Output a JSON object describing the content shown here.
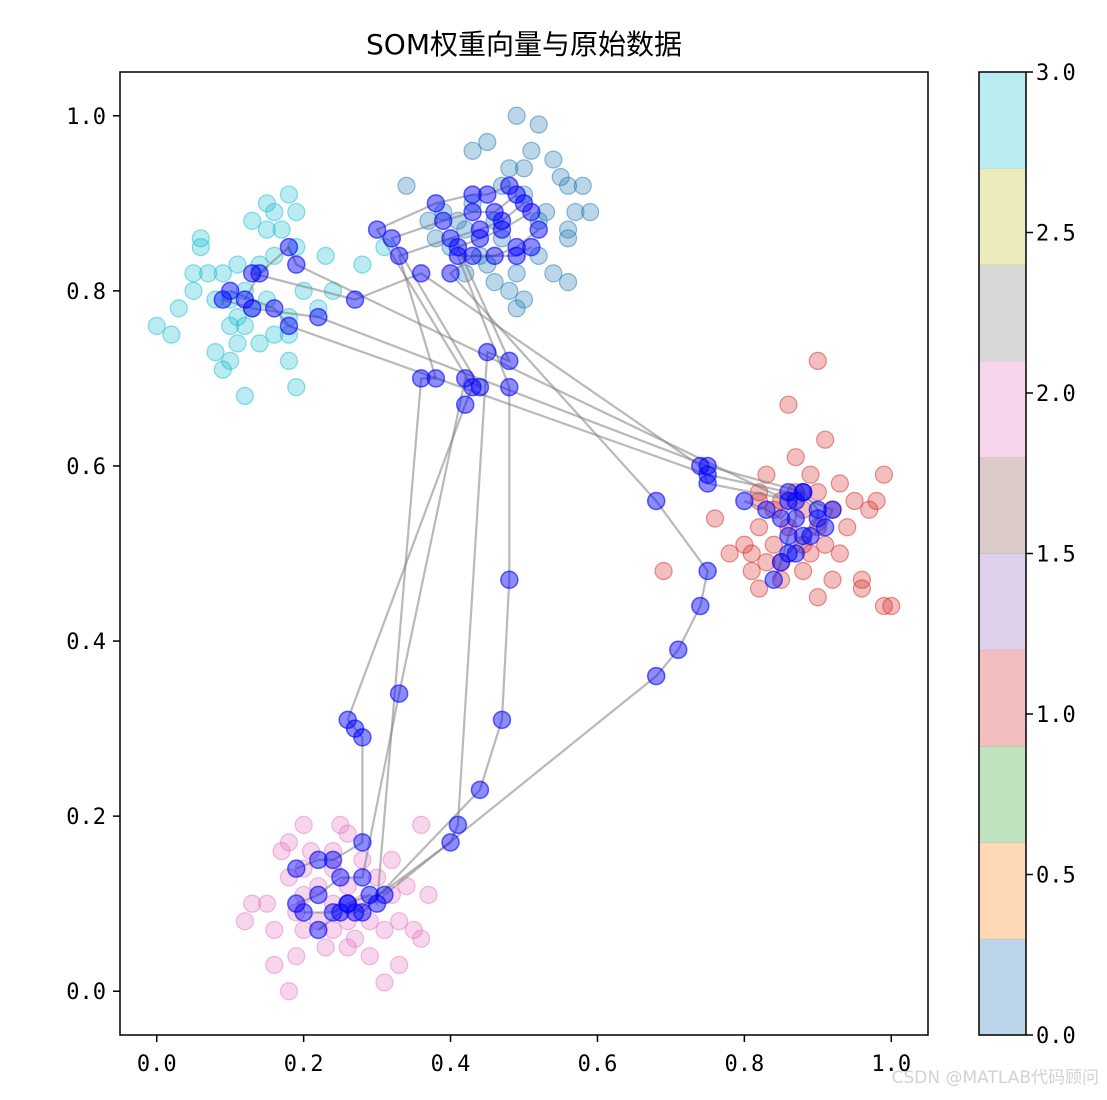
{
  "chart_data": {
    "type": "scatter",
    "title": "SOM权重向量与原始数据",
    "xlim": [
      -0.05,
      1.05
    ],
    "ylim": [
      -0.05,
      1.05
    ],
    "xticks": [
      0.0,
      0.2,
      0.4,
      0.6,
      0.8,
      1.0
    ],
    "yticks": [
      0.0,
      0.2,
      0.4,
      0.6,
      0.8,
      1.0
    ],
    "xtick_labels": [
      "0.0",
      "0.2",
      "0.4",
      "0.6",
      "0.8",
      "1.0"
    ],
    "ytick_labels": [
      "0.0",
      "0.2",
      "0.4",
      "0.6",
      "0.8",
      "1.0"
    ],
    "grid": false,
    "colorbar": {
      "range": [
        0.0,
        3.0
      ],
      "tick_labels": [
        "0.0",
        "0.5",
        "1.0",
        "1.5",
        "2.0",
        "2.5",
        "3.0"
      ],
      "bands": [
        "#1f77b4",
        "#ff7f0e",
        "#2ca02c",
        "#d62728",
        "#9467bd",
        "#8c564b",
        "#e377c2",
        "#7f7f7f",
        "#bcbd22",
        "#17becf"
      ]
    },
    "data_clusters": [
      {
        "label": 0,
        "color": "#1f77b4",
        "points": [
          [
            0.49,
            1.0
          ],
          [
            0.52,
            0.99
          ],
          [
            0.43,
            0.96
          ],
          [
            0.45,
            0.97
          ],
          [
            0.48,
            0.94
          ],
          [
            0.51,
            0.96
          ],
          [
            0.54,
            0.95
          ],
          [
            0.56,
            0.92
          ],
          [
            0.55,
            0.93
          ],
          [
            0.58,
            0.92
          ],
          [
            0.57,
            0.89
          ],
          [
            0.59,
            0.89
          ],
          [
            0.53,
            0.89
          ],
          [
            0.5,
            0.91
          ],
          [
            0.47,
            0.92
          ],
          [
            0.46,
            0.88
          ],
          [
            0.42,
            0.87
          ],
          [
            0.39,
            0.89
          ],
          [
            0.34,
            0.92
          ],
          [
            0.4,
            0.85
          ],
          [
            0.44,
            0.84
          ],
          [
            0.47,
            0.86
          ],
          [
            0.49,
            0.82
          ],
          [
            0.52,
            0.84
          ],
          [
            0.54,
            0.82
          ],
          [
            0.56,
            0.86
          ],
          [
            0.56,
            0.87
          ],
          [
            0.56,
            0.81
          ],
          [
            0.42,
            0.82
          ],
          [
            0.46,
            0.81
          ],
          [
            0.48,
            0.8
          ],
          [
            0.49,
            0.78
          ],
          [
            0.5,
            0.79
          ],
          [
            0.45,
            0.83
          ],
          [
            0.38,
            0.86
          ],
          [
            0.37,
            0.88
          ],
          [
            0.52,
            0.88
          ],
          [
            0.5,
            0.94
          ],
          [
            0.43,
            0.9
          ],
          [
            0.41,
            0.88
          ]
        ]
      },
      {
        "label": 3,
        "color": "#17becf",
        "points": [
          [
            0.18,
            0.91
          ],
          [
            0.15,
            0.9
          ],
          [
            0.16,
            0.89
          ],
          [
            0.19,
            0.89
          ],
          [
            0.13,
            0.88
          ],
          [
            0.15,
            0.87
          ],
          [
            0.17,
            0.87
          ],
          [
            0.06,
            0.86
          ],
          [
            0.06,
            0.85
          ],
          [
            0.19,
            0.85
          ],
          [
            0.11,
            0.83
          ],
          [
            0.14,
            0.83
          ],
          [
            0.16,
            0.84
          ],
          [
            0.23,
            0.84
          ],
          [
            0.05,
            0.82
          ],
          [
            0.07,
            0.82
          ],
          [
            0.09,
            0.82
          ],
          [
            0.12,
            0.8
          ],
          [
            0.05,
            0.8
          ],
          [
            0.1,
            0.79
          ],
          [
            0.2,
            0.8
          ],
          [
            0.24,
            0.8
          ],
          [
            0.08,
            0.79
          ],
          [
            0.03,
            0.78
          ],
          [
            0.13,
            0.78
          ],
          [
            0.18,
            0.77
          ],
          [
            0.22,
            0.78
          ],
          [
            0.0,
            0.76
          ],
          [
            0.1,
            0.76
          ],
          [
            0.12,
            0.76
          ],
          [
            0.16,
            0.75
          ],
          [
            0.02,
            0.75
          ],
          [
            0.11,
            0.74
          ],
          [
            0.14,
            0.74
          ],
          [
            0.18,
            0.75
          ],
          [
            0.08,
            0.73
          ],
          [
            0.1,
            0.72
          ],
          [
            0.18,
            0.72
          ],
          [
            0.09,
            0.71
          ],
          [
            0.19,
            0.69
          ],
          [
            0.12,
            0.68
          ],
          [
            0.28,
            0.83
          ],
          [
            0.31,
            0.85
          ],
          [
            0.11,
            0.77
          ],
          [
            0.15,
            0.79
          ]
        ]
      },
      {
        "label": 1,
        "color": "#d62728",
        "points": [
          [
            0.9,
            0.72
          ],
          [
            0.86,
            0.67
          ],
          [
            0.91,
            0.63
          ],
          [
            0.87,
            0.61
          ],
          [
            0.83,
            0.59
          ],
          [
            0.89,
            0.59
          ],
          [
            0.93,
            0.58
          ],
          [
            0.99,
            0.59
          ],
          [
            0.82,
            0.57
          ],
          [
            0.87,
            0.57
          ],
          [
            0.85,
            0.56
          ],
          [
            0.9,
            0.57
          ],
          [
            0.95,
            0.56
          ],
          [
            0.98,
            0.56
          ],
          [
            0.84,
            0.55
          ],
          [
            0.88,
            0.55
          ],
          [
            0.92,
            0.55
          ],
          [
            0.97,
            0.55
          ],
          [
            0.76,
            0.54
          ],
          [
            0.82,
            0.53
          ],
          [
            0.86,
            0.53
          ],
          [
            0.9,
            0.53
          ],
          [
            0.94,
            0.53
          ],
          [
            0.8,
            0.51
          ],
          [
            0.84,
            0.51
          ],
          [
            0.88,
            0.51
          ],
          [
            0.91,
            0.51
          ],
          [
            0.81,
            0.5
          ],
          [
            0.85,
            0.49
          ],
          [
            0.89,
            0.5
          ],
          [
            0.93,
            0.5
          ],
          [
            0.69,
            0.48
          ],
          [
            0.81,
            0.48
          ],
          [
            0.83,
            0.49
          ],
          [
            0.88,
            0.48
          ],
          [
            0.92,
            0.47
          ],
          [
            0.96,
            0.47
          ],
          [
            0.82,
            0.46
          ],
          [
            0.9,
            0.45
          ],
          [
            0.96,
            0.46
          ],
          [
            0.99,
            0.44
          ],
          [
            1.0,
            0.44
          ],
          [
            0.85,
            0.47
          ],
          [
            0.78,
            0.5
          ],
          [
            0.82,
            0.56
          ]
        ]
      },
      {
        "label": 2,
        "color": "#e377c2",
        "points": [
          [
            0.2,
            0.19
          ],
          [
            0.25,
            0.19
          ],
          [
            0.18,
            0.17
          ],
          [
            0.26,
            0.18
          ],
          [
            0.17,
            0.16
          ],
          [
            0.21,
            0.16
          ],
          [
            0.24,
            0.16
          ],
          [
            0.36,
            0.19
          ],
          [
            0.2,
            0.14
          ],
          [
            0.24,
            0.14
          ],
          [
            0.28,
            0.15
          ],
          [
            0.32,
            0.15
          ],
          [
            0.18,
            0.13
          ],
          [
            0.22,
            0.12
          ],
          [
            0.26,
            0.12
          ],
          [
            0.3,
            0.13
          ],
          [
            0.34,
            0.12
          ],
          [
            0.2,
            0.11
          ],
          [
            0.24,
            0.1
          ],
          [
            0.28,
            0.1
          ],
          [
            0.32,
            0.11
          ],
          [
            0.37,
            0.11
          ],
          [
            0.19,
            0.09
          ],
          [
            0.22,
            0.08
          ],
          [
            0.26,
            0.08
          ],
          [
            0.29,
            0.08
          ],
          [
            0.33,
            0.08
          ],
          [
            0.13,
            0.1
          ],
          [
            0.15,
            0.1
          ],
          [
            0.12,
            0.08
          ],
          [
            0.16,
            0.07
          ],
          [
            0.2,
            0.07
          ],
          [
            0.24,
            0.07
          ],
          [
            0.27,
            0.06
          ],
          [
            0.31,
            0.07
          ],
          [
            0.35,
            0.07
          ],
          [
            0.36,
            0.06
          ],
          [
            0.23,
            0.05
          ],
          [
            0.26,
            0.05
          ],
          [
            0.29,
            0.04
          ],
          [
            0.19,
            0.04
          ],
          [
            0.16,
            0.03
          ],
          [
            0.33,
            0.03
          ],
          [
            0.31,
            0.01
          ],
          [
            0.18,
            0.0
          ]
        ]
      }
    ],
    "som_grid": [
      [
        [
          0.19,
          0.14
        ],
        [
          0.22,
          0.15
        ],
        [
          0.24,
          0.15
        ],
        [
          0.28,
          0.17
        ],
        [
          0.28,
          0.29
        ],
        [
          0.27,
          0.3
        ],
        [
          0.26,
          0.31
        ],
        [
          0.42,
          0.67
        ],
        [
          0.43,
          0.69
        ],
        [
          0.3,
          0.87
        ],
        [
          0.38,
          0.9
        ],
        [
          0.43,
          0.91
        ],
        [
          0.45,
          0.91
        ],
        [
          0.48,
          0.92
        ]
      ],
      [
        [
          0.19,
          0.1
        ],
        [
          0.22,
          0.11
        ],
        [
          0.25,
          0.13
        ],
        [
          0.28,
          0.13
        ],
        [
          0.33,
          0.34
        ],
        [
          0.42,
          0.7
        ],
        [
          0.44,
          0.69
        ],
        [
          0.32,
          0.86
        ],
        [
          0.39,
          0.88
        ],
        [
          0.43,
          0.89
        ],
        [
          0.46,
          0.89
        ],
        [
          0.49,
          0.91
        ]
      ],
      [
        [
          0.2,
          0.09
        ],
        [
          0.24,
          0.09
        ],
        [
          0.26,
          0.1
        ],
        [
          0.29,
          0.11
        ],
        [
          0.3,
          0.1
        ],
        [
          0.36,
          0.7
        ],
        [
          0.38,
          0.7
        ],
        [
          0.33,
          0.84
        ],
        [
          0.4,
          0.86
        ],
        [
          0.44,
          0.87
        ],
        [
          0.47,
          0.88
        ],
        [
          0.5,
          0.9
        ]
      ],
      [
        [
          0.22,
          0.07
        ],
        [
          0.25,
          0.09
        ],
        [
          0.27,
          0.09
        ],
        [
          0.4,
          0.17
        ],
        [
          0.41,
          0.19
        ],
        [
          0.45,
          0.73
        ],
        [
          0.48,
          0.72
        ],
        [
          0.41,
          0.85
        ],
        [
          0.44,
          0.86
        ],
        [
          0.47,
          0.87
        ],
        [
          0.51,
          0.89
        ]
      ],
      [
        [
          0.26,
          0.1
        ],
        [
          0.28,
          0.09
        ],
        [
          0.44,
          0.23
        ],
        [
          0.47,
          0.31
        ],
        [
          0.48,
          0.47
        ],
        [
          0.48,
          0.69
        ],
        [
          0.41,
          0.84
        ],
        [
          0.46,
          0.84
        ],
        [
          0.49,
          0.85
        ],
        [
          0.52,
          0.87
        ]
      ],
      [
        [
          0.31,
          0.11
        ],
        [
          0.68,
          0.36
        ],
        [
          0.71,
          0.39
        ],
        [
          0.74,
          0.44
        ],
        [
          0.75,
          0.48
        ],
        [
          0.68,
          0.56
        ],
        [
          0.4,
          0.82
        ],
        [
          0.43,
          0.84
        ],
        [
          0.49,
          0.84
        ],
        [
          0.51,
          0.85
        ]
      ],
      [
        [
          0.84,
          0.47
        ],
        [
          0.85,
          0.49
        ],
        [
          0.86,
          0.52
        ],
        [
          0.87,
          0.54
        ],
        [
          0.87,
          0.56
        ],
        [
          0.75,
          0.58
        ],
        [
          0.74,
          0.6
        ],
        [
          0.36,
          0.82
        ],
        [
          0.27,
          0.79
        ],
        [
          0.13,
          0.82
        ]
      ],
      [
        [
          0.86,
          0.5
        ],
        [
          0.88,
          0.52
        ],
        [
          0.9,
          0.54
        ],
        [
          0.9,
          0.55
        ],
        [
          0.88,
          0.57
        ],
        [
          0.75,
          0.6
        ],
        [
          0.22,
          0.77
        ],
        [
          0.13,
          0.78
        ],
        [
          0.09,
          0.79
        ]
      ],
      [
        [
          0.87,
          0.5
        ],
        [
          0.89,
          0.52
        ],
        [
          0.91,
          0.53
        ],
        [
          0.92,
          0.55
        ],
        [
          0.86,
          0.57
        ],
        [
          0.75,
          0.59
        ],
        [
          0.18,
          0.76
        ],
        [
          0.16,
          0.78
        ],
        [
          0.1,
          0.8
        ]
      ],
      [
        [
          0.8,
          0.56
        ],
        [
          0.83,
          0.55
        ],
        [
          0.85,
          0.54
        ],
        [
          0.88,
          0.57
        ],
        [
          0.86,
          0.56
        ],
        [
          0.19,
          0.83
        ],
        [
          0.18,
          0.85
        ],
        [
          0.14,
          0.82
        ],
        [
          0.12,
          0.79
        ]
      ]
    ],
    "som_color": "#0000ff",
    "line_color": "#808080"
  },
  "watermark": "CSDN @MATLAB代码顾问"
}
